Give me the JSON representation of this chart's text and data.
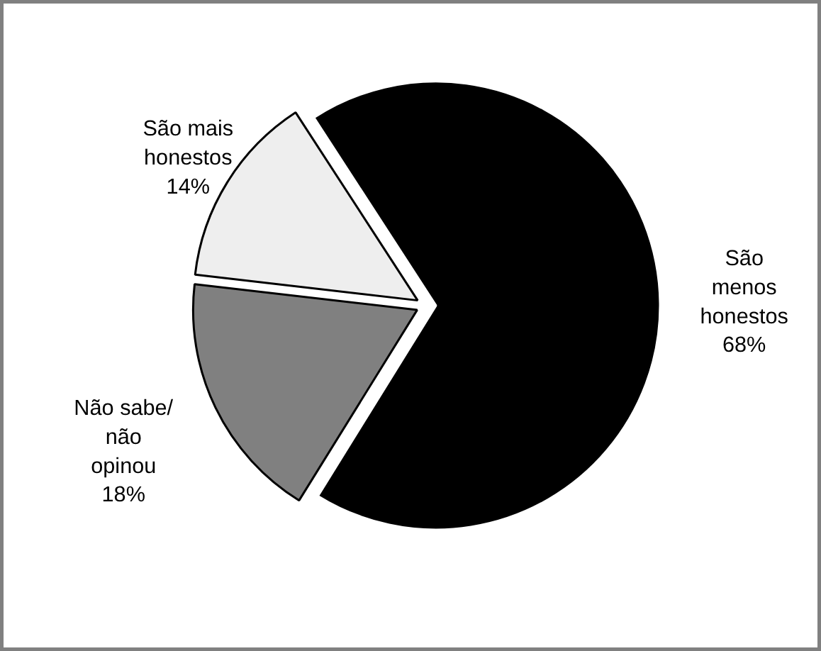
{
  "chart_data": {
    "type": "pie",
    "categories": [
      "São\nmenos\nhonestos",
      "Não sabe/\nnão\nopinou",
      "São mais\nhonestos"
    ],
    "values": [
      68,
      18,
      14
    ],
    "value_labels": [
      "68%",
      "18%",
      "14%"
    ],
    "colors": [
      "#000000",
      "#808080",
      "#eeeeee"
    ]
  }
}
